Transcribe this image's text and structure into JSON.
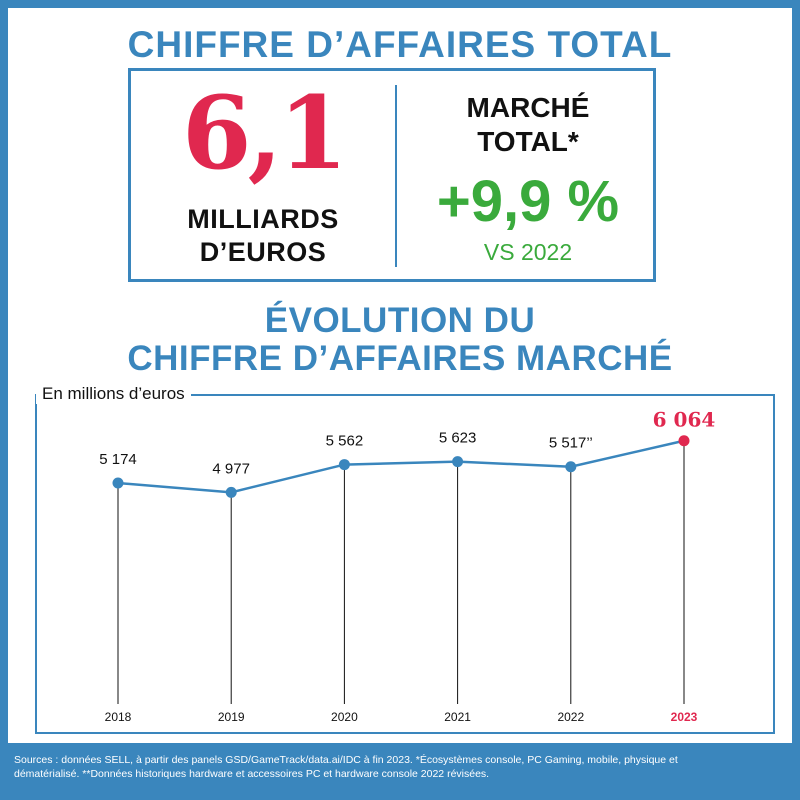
{
  "header": {
    "title": "CHIFFRE D’AFFAIRES TOTAL"
  },
  "kpi": {
    "value": "6,1",
    "unit_line1": "MILLIARDS",
    "unit_line2": "D’EUROS",
    "market_label_line1": "MARCHÉ",
    "market_label_line2": "TOTAL*",
    "growth": "+9,9 %",
    "comparison": "VS 2022"
  },
  "section": {
    "title_line1": "ÉVOLUTION DU",
    "title_line2": "CHIFFRE D’AFFAIRES MARCHÉ"
  },
  "colors": {
    "accent": "#3a86bd",
    "highlight": "#e0284f",
    "positive": "#3aaa3c"
  },
  "chart_data": {
    "type": "line",
    "unit_label": "En millions d’euros",
    "categories": [
      "2018",
      "2019",
      "2020",
      "2021",
      "2022",
      "2023"
    ],
    "values": [
      5174,
      4977,
      5562,
      5623,
      5517,
      6064
    ],
    "value_labels": [
      "5 174",
      "4 977",
      "5 562",
      "5 623",
      "5 517’’",
      "6 064"
    ],
    "highlight_index": 5,
    "line_color": "#3a86bd",
    "highlight_color": "#e0284f"
  },
  "footer": {
    "line1": "Sources : données SELL, à partir des panels GSD/GameTrack/data.ai/IDC à fin 2023.  *Écosystèmes console, PC Gaming, mobile, physique et",
    "line2": "dématérialisé.  **Données historiques hardware et accessoires PC et hardware console 2022 révisées."
  }
}
